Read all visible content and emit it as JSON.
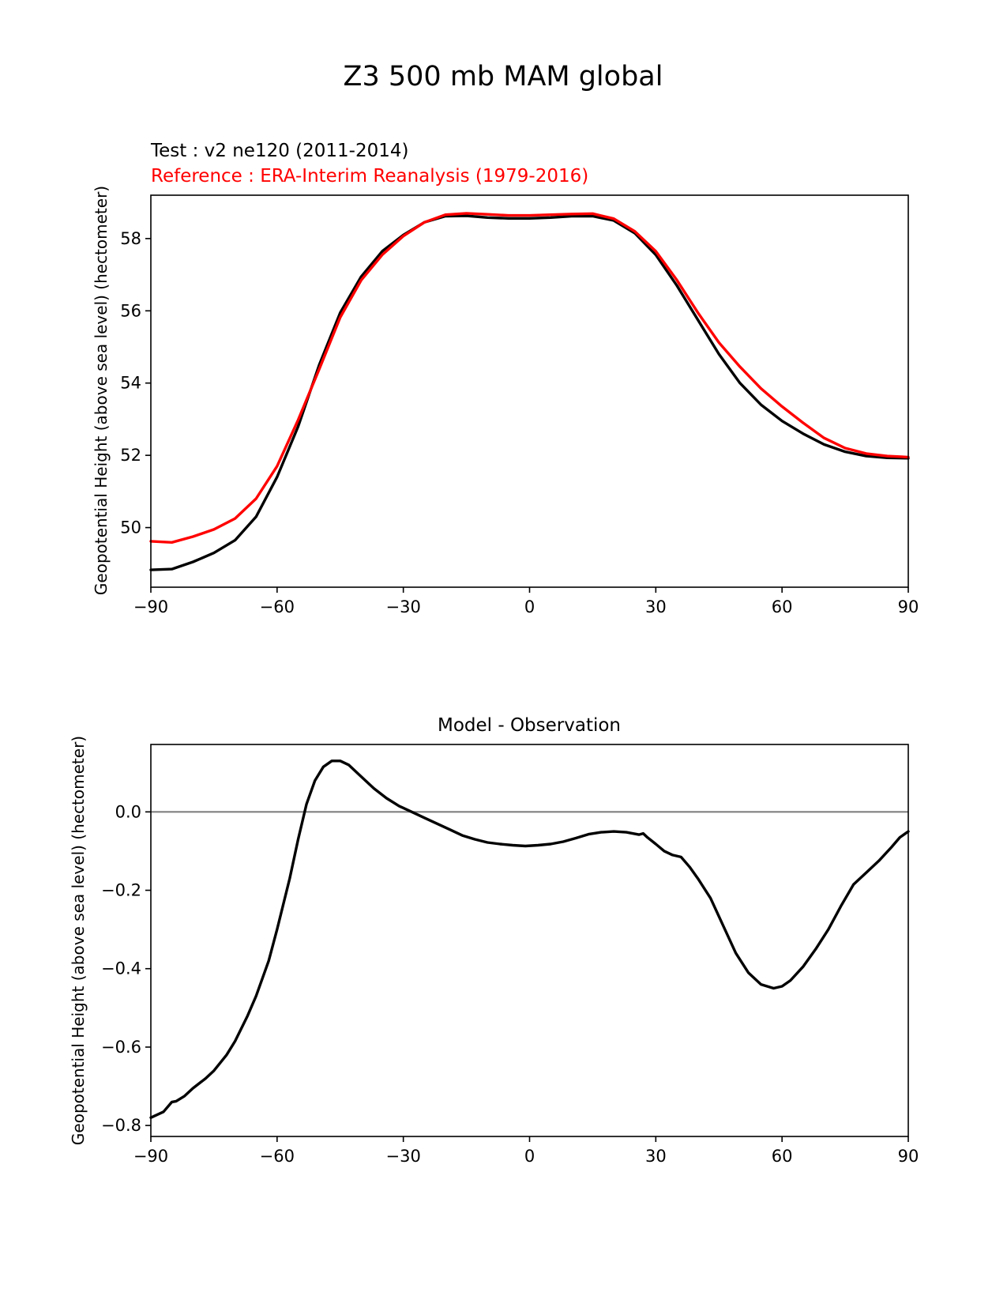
{
  "figure_title": "Z3 500 mb MAM global",
  "colors": {
    "test": "#000000",
    "reference": "#ff0000",
    "zero_line": "#808080",
    "axes": "#000000"
  },
  "chart_data": [
    {
      "type": "line",
      "test_label": "Test : v2 ne120 (2011-2014)",
      "reference_label": "Reference : ERA-Interim Reanalysis (1979-2016)",
      "xlabel": "",
      "ylabel": "Geopotential Height (above sea level) (hectometer)",
      "xlim": [
        -90,
        90
      ],
      "ylim": [
        48.35,
        59.2
      ],
      "xticks": [
        -90,
        -60,
        -30,
        0,
        30,
        60,
        90
      ],
      "xtick_labels": [
        "−90",
        "−60",
        "−30",
        "0",
        "30",
        "60",
        "90"
      ],
      "yticks": [
        50,
        52,
        54,
        56,
        58
      ],
      "ytick_labels": [
        "50",
        "52",
        "54",
        "56",
        "58"
      ],
      "x": [
        -90,
        -85,
        -80,
        -75,
        -70,
        -65,
        -60,
        -55,
        -50,
        -45,
        -40,
        -35,
        -30,
        -25,
        -20,
        -15,
        -10,
        -5,
        0,
        5,
        10,
        15,
        20,
        25,
        30,
        35,
        40,
        45,
        50,
        55,
        60,
        65,
        70,
        75,
        80,
        85,
        90
      ],
      "series": [
        {
          "name": "test",
          "values": [
            48.83,
            48.85,
            49.05,
            49.3,
            49.65,
            50.3,
            51.4,
            52.8,
            54.5,
            55.95,
            56.95,
            57.65,
            58.1,
            58.45,
            58.62,
            58.63,
            58.58,
            58.56,
            58.56,
            58.58,
            58.62,
            58.62,
            58.5,
            58.15,
            57.55,
            56.7,
            55.75,
            54.8,
            54.0,
            53.4,
            52.95,
            52.6,
            52.3,
            52.1,
            51.98,
            51.93,
            51.92
          ]
        },
        {
          "name": "reference",
          "values": [
            49.62,
            49.59,
            49.75,
            49.95,
            50.25,
            50.8,
            51.7,
            52.98,
            54.38,
            55.82,
            56.85,
            57.55,
            58.07,
            58.45,
            58.66,
            58.7,
            58.67,
            58.64,
            58.64,
            58.66,
            58.68,
            58.69,
            58.55,
            58.2,
            57.65,
            56.85,
            55.95,
            55.12,
            54.45,
            53.85,
            53.35,
            52.9,
            52.48,
            52.2,
            52.05,
            51.98,
            51.95
          ]
        }
      ]
    },
    {
      "type": "line",
      "title": "Model - Observation",
      "xlabel": "",
      "ylabel": "Geopotential Height (above sea level) (hectometer)",
      "xlim": [
        -90,
        90
      ],
      "ylim": [
        -0.828,
        0.172
      ],
      "xticks": [
        -90,
        -60,
        -30,
        0,
        30,
        60,
        90
      ],
      "xtick_labels": [
        "−90",
        "−60",
        "−30",
        "0",
        "30",
        "60",
        "90"
      ],
      "yticks": [
        0.0,
        -0.2,
        -0.4,
        -0.6,
        -0.8
      ],
      "ytick_labels": [
        "0.0",
        "−0.2",
        "−0.4",
        "−0.6",
        "−0.8"
      ],
      "zero_line": 0,
      "x": [
        -90,
        -87,
        -85,
        -84,
        -82,
        -80,
        -77,
        -75,
        -72,
        -70,
        -67,
        -65,
        -62,
        -60,
        -57,
        -55,
        -53,
        -51,
        -49,
        -47,
        -45,
        -43,
        -40,
        -37,
        -34,
        -31,
        -28,
        -25,
        -22,
        -19,
        -16,
        -13,
        -10,
        -7,
        -4,
        -1,
        2,
        5,
        8,
        11,
        14,
        17,
        20,
        23,
        26,
        27,
        28,
        30,
        32,
        34,
        36,
        38,
        40,
        43,
        46,
        49,
        52,
        55,
        58,
        60,
        62,
        65,
        68,
        71,
        74,
        77,
        80,
        83,
        86,
        88,
        90
      ],
      "series": [
        {
          "name": "difference",
          "values": [
            -0.78,
            -0.765,
            -0.74,
            -0.738,
            -0.725,
            -0.705,
            -0.68,
            -0.66,
            -0.62,
            -0.585,
            -0.52,
            -0.47,
            -0.38,
            -0.3,
            -0.17,
            -0.07,
            0.02,
            0.08,
            0.115,
            0.13,
            0.13,
            0.12,
            0.09,
            0.06,
            0.035,
            0.015,
            0.0,
            -0.015,
            -0.03,
            -0.045,
            -0.06,
            -0.07,
            -0.078,
            -0.082,
            -0.085,
            -0.087,
            -0.085,
            -0.082,
            -0.076,
            -0.067,
            -0.057,
            -0.052,
            -0.05,
            -0.052,
            -0.058,
            -0.055,
            -0.065,
            -0.082,
            -0.1,
            -0.11,
            -0.115,
            -0.14,
            -0.17,
            -0.22,
            -0.29,
            -0.36,
            -0.41,
            -0.44,
            -0.45,
            -0.445,
            -0.43,
            -0.395,
            -0.35,
            -0.3,
            -0.24,
            -0.185,
            -0.155,
            -0.125,
            -0.09,
            -0.065,
            -0.05
          ]
        }
      ]
    }
  ]
}
